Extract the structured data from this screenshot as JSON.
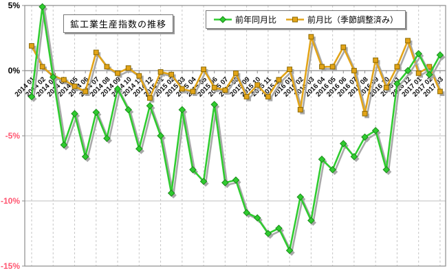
{
  "chart_data": {
    "type": "line",
    "title": "鉱工業生産指数の推移",
    "legend_position": "top",
    "categories": [
      "2014 01",
      "2014 02",
      "2014 03",
      "2014 04",
      "2014 05",
      "2014 06",
      "2014 07",
      "2014 08",
      "2014 09",
      "2014 10",
      "2014 11",
      "2014 12",
      "2015 01",
      "2015 02",
      "2015 03",
      "2015 04",
      "2015 05",
      "2015 06",
      "2015 07",
      "2015 08",
      "2015 09",
      "2015 10",
      "2015 11",
      "2015 12",
      "2016 01",
      "2016 02",
      "2016 03",
      "2016 04",
      "2016 05",
      "2016 06",
      "2016 07",
      "2016 08",
      "2016 09",
      "2016 10",
      "2016 11",
      "2016 12",
      "2017 01",
      "2017 02",
      "2017 03"
    ],
    "series": [
      {
        "name": "前年同月比",
        "marker": "diamond",
        "color": "#2fcc2f",
        "marker_edge": "#1b8a1b",
        "values": [
          -2.0,
          4.9,
          -0.5,
          -5.7,
          -3.3,
          -6.6,
          -3.2,
          -5.2,
          -1.4,
          -3.0,
          -6.0,
          -2.7,
          -5.0,
          -9.4,
          -3.0,
          -7.6,
          -8.5,
          -2.6,
          -8.6,
          -8.4,
          -10.9,
          -11.3,
          -12.5,
          -12.1,
          -13.8,
          -9.7,
          -11.5,
          -6.8,
          -7.6,
          -5.6,
          -6.6,
          -5.1,
          -4.6,
          -7.6,
          -1.0,
          0.0,
          1.3,
          -0.3,
          1.2
        ]
      },
      {
        "name": "前月比（季節調整済み）",
        "marker": "square",
        "color": "#e2a418",
        "marker_edge": "#8a6700",
        "values": [
          1.9,
          0.3,
          -0.4,
          -0.7,
          -1.2,
          -1.6,
          1.4,
          0.3,
          -0.2,
          0.2,
          -0.4,
          -2.1,
          -0.1,
          -0.3,
          -1.4,
          -1.6,
          0.1,
          -1.3,
          -1.5,
          -0.2,
          -2.0,
          -1.1,
          -2.0,
          -0.7,
          0.1,
          -3.0,
          2.6,
          0.3,
          0.3,
          1.8,
          0.0,
          -3.3,
          0.8,
          -1.3,
          0.3,
          2.3,
          -0.2,
          0.3,
          -1.6
        ]
      }
    ],
    "ylim": [
      -15,
      5
    ],
    "ytick_step": 5,
    "yticks": [
      {
        "label": "5%",
        "value": 5,
        "color": "#000000"
      },
      {
        "label": "0%",
        "value": 0,
        "color": "#000000"
      },
      {
        "label": "-5%",
        "value": -5,
        "color": "#ff5570"
      },
      {
        "label": "-10%",
        "value": -10,
        "color": "#ff5570"
      },
      {
        "label": "-15%",
        "value": -15,
        "color": "#ff5570"
      }
    ],
    "grid": {
      "horizontal": "solid",
      "vertical": "dashed-every-2-months"
    },
    "shadow_color": "#a8a8a8",
    "axis_color": "#8c8c8c",
    "minor_grid_color": "#c6c6c6"
  }
}
